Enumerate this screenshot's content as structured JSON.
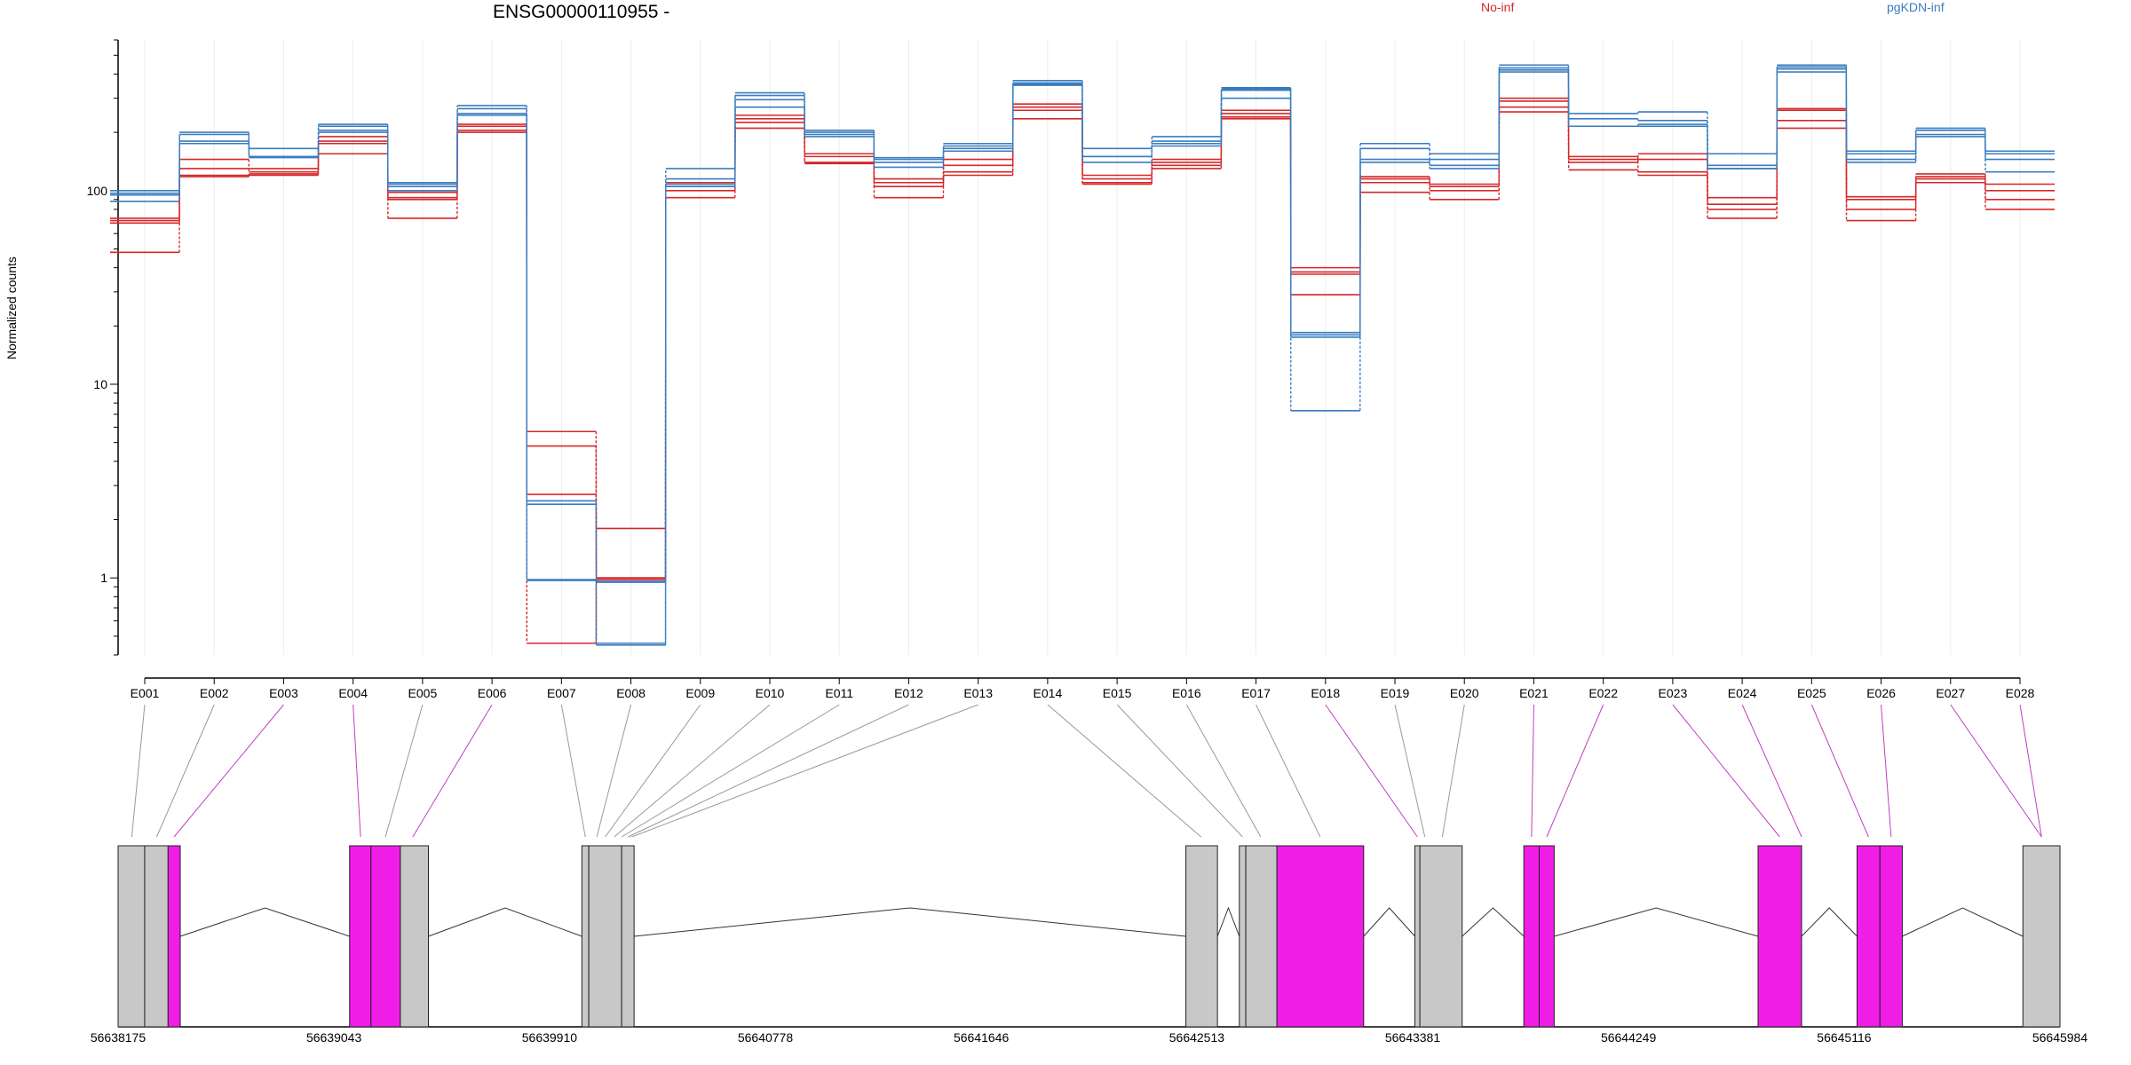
{
  "chart_data": {
    "type": "line",
    "title": "ENSG00000110955 -",
    "ylabel": "Normalized counts",
    "yscale": "log",
    "ylim": [
      0.4,
      600
    ],
    "yticks": [
      1,
      10,
      100
    ],
    "ytick_labels": [
      "1",
      "10",
      "100"
    ],
    "grid": "vertical-only",
    "legend_position": "top",
    "colors": {
      "No-inf": "#d62728",
      "pgKDN-inf": "#3a7dc0",
      "exon_plain": "#c8c8c8",
      "exon_highlight": "#f01de6",
      "connector_plain": "#999999",
      "connector_highlight": "#c040c0"
    },
    "categories": [
      "E001",
      "E002",
      "E003",
      "E004",
      "E005",
      "E006",
      "E007",
      "E008",
      "E009",
      "E010",
      "E011",
      "E012",
      "E013",
      "E014",
      "E015",
      "E016",
      "E017",
      "E018",
      "E019",
      "E020",
      "E021",
      "E022",
      "E023",
      "E024",
      "E025",
      "E026",
      "E027",
      "E028"
    ],
    "series": [
      {
        "name": "No-inf",
        "group": "No-inf",
        "values": [
          72,
          120,
          122,
          190,
          98,
          220,
          5.7,
          1.0,
          110,
          245,
          155,
          115,
          145,
          280,
          120,
          145,
          260,
          40,
          115,
          108,
          300,
          150,
          125,
          92,
          265,
          93,
          122,
          108
        ]
      },
      {
        "name": "No-inf",
        "group": "No-inf",
        "values": [
          70,
          130,
          125,
          180,
          92,
          215,
          4.8,
          1.0,
          105,
          235,
          150,
          110,
          135,
          270,
          115,
          140,
          250,
          38,
          118,
          105,
          290,
          145,
          145,
          85,
          260,
          90,
          118,
          100
        ]
      },
      {
        "name": "No-inf",
        "group": "No-inf",
        "values": [
          68,
          145,
          130,
          175,
          90,
          205,
          2.7,
          1.8,
          100,
          225,
          140,
          105,
          125,
          260,
          110,
          135,
          240,
          37,
          110,
          100,
          270,
          140,
          155,
          80,
          230,
          80,
          115,
          90
        ]
      },
      {
        "name": "No-inf",
        "group": "No-inf",
        "values": [
          48,
          118,
          120,
          155,
          72,
          200,
          0.46,
          0.98,
          92,
          210,
          138,
          92,
          120,
          235,
          108,
          130,
          235,
          29,
          98,
          90,
          255,
          128,
          120,
          72,
          210,
          70,
          110,
          80
        ]
      },
      {
        "name": "pgKDN-inf",
        "group": "pgKDN-inf",
        "values": [
          100,
          200,
          165,
          220,
          110,
          275,
          2.5,
          0.96,
          130,
          320,
          205,
          148,
          175,
          370,
          165,
          190,
          340,
          18.5,
          175,
          155,
          445,
          250,
          255,
          155,
          445,
          160,
          210,
          160
        ]
      },
      {
        "name": "pgKDN-inf",
        "group": "pgKDN-inf",
        "values": [
          97,
          195,
          150,
          215,
          108,
          265,
          2.4,
          0.95,
          115,
          310,
          200,
          145,
          170,
          360,
          150,
          180,
          335,
          18,
          165,
          145,
          430,
          235,
          230,
          135,
          435,
          155,
          205,
          155
        ]
      },
      {
        "name": "pgKDN-inf",
        "group": "pgKDN-inf",
        "values": [
          95,
          180,
          150,
          205,
          105,
          250,
          0.98,
          0.46,
          108,
          295,
          195,
          140,
          165,
          355,
          150,
          175,
          330,
          17.5,
          145,
          135,
          420,
          215,
          220,
          130,
          425,
          145,
          195,
          145
        ]
      },
      {
        "name": "pgKDN-inf",
        "group": "pgKDN-inf",
        "values": [
          88,
          175,
          148,
          200,
          100,
          245,
          0.97,
          0.45,
          105,
          270,
          190,
          132,
          160,
          350,
          140,
          170,
          300,
          7.3,
          140,
          130,
          410,
          215,
          215,
          130,
          410,
          140,
          190,
          125
        ]
      }
    ],
    "gene_model": {
      "coordinate_labels": [
        "56638175",
        "56639043",
        "56639910",
        "56640778",
        "56641646",
        "56642513",
        "56643381",
        "56644249",
        "56645116",
        "56645984"
      ],
      "coord_range": [
        56638175,
        56645984
      ],
      "exons": [
        {
          "start": 56638175,
          "end": 56638282,
          "highlight": false
        },
        {
          "start": 56638282,
          "end": 56638376,
          "highlight": false
        },
        {
          "start": 56638376,
          "end": 56638425,
          "highlight": true
        },
        {
          "start": 56639106,
          "end": 56639192,
          "highlight": true
        },
        {
          "start": 56639192,
          "end": 56639310,
          "highlight": true
        },
        {
          "start": 56639310,
          "end": 56639423,
          "highlight": false
        },
        {
          "start": 56640040,
          "end": 56640068,
          "highlight": false
        },
        {
          "start": 56640068,
          "end": 56640200,
          "highlight": false
        },
        {
          "start": 56640200,
          "end": 56640250,
          "highlight": false
        },
        {
          "start": 56642469,
          "end": 56642596,
          "highlight": false
        },
        {
          "start": 56642684,
          "end": 56642710,
          "highlight": false
        },
        {
          "start": 56642710,
          "end": 56642835,
          "highlight": false
        },
        {
          "start": 56642835,
          "end": 56643184,
          "highlight": true
        },
        {
          "start": 56643390,
          "end": 56643410,
          "highlight": false
        },
        {
          "start": 56643410,
          "end": 56643580,
          "highlight": false
        },
        {
          "start": 56643828,
          "end": 56643890,
          "highlight": true
        },
        {
          "start": 56643890,
          "end": 56643950,
          "highlight": true
        },
        {
          "start": 56644770,
          "end": 56644945,
          "highlight": true
        },
        {
          "start": 56645168,
          "end": 56645260,
          "highlight": true
        },
        {
          "start": 56645260,
          "end": 56645350,
          "highlight": true
        },
        {
          "start": 56645835,
          "end": 56645984,
          "highlight": false
        }
      ],
      "feature_positions": [
        56638230,
        56638330,
        56638400,
        56639150,
        56639250,
        56639360,
        56640054,
        56640100,
        56640134,
        56640170,
        56640200,
        56640225,
        56640240,
        56642530,
        56642697,
        56642770,
        56643009,
        56643400,
        56643430,
        56643500,
        56643859,
        56643920,
        56644857,
        56644945,
        56645214,
        56645305,
        56645910
      ],
      "feature_map": [
        0,
        1,
        2,
        3,
        4,
        5,
        6,
        7,
        8,
        9,
        10,
        11,
        12,
        13,
        14,
        15,
        16,
        17,
        18,
        19,
        20,
        21,
        22,
        23,
        24,
        25,
        26,
        26
      ],
      "highlight_features": [
        2,
        3,
        5,
        17,
        20,
        21,
        22,
        23,
        24,
        25,
        26
      ]
    }
  },
  "legend": {
    "no_inf": "No-inf",
    "pgkdn_inf": "pgKDN-inf"
  }
}
